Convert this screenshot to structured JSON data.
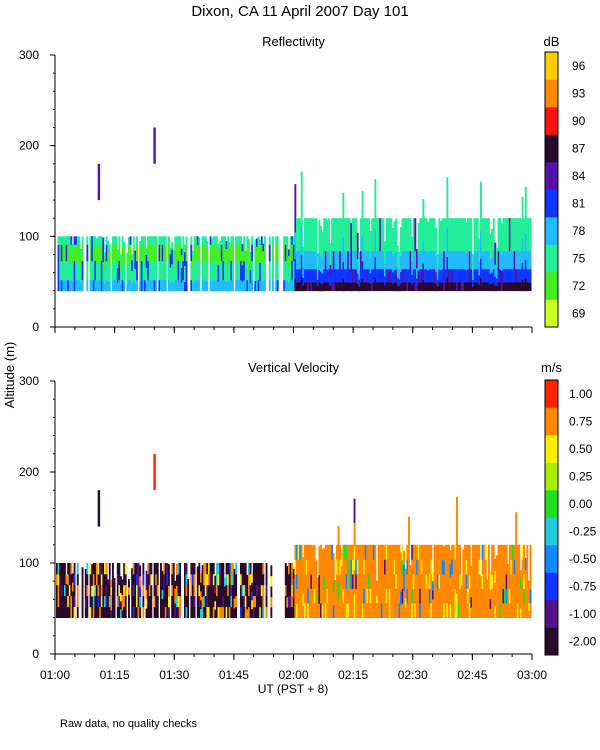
{
  "title": "Dixon, CA 11 April 2007  Day 101",
  "shared_ylabel": "Altitude (m)",
  "xlabel": "UT  (PST + 8)",
  "footnote": "Raw data, no quality checks",
  "chart_data": [
    {
      "type": "heatmap",
      "title": "Reflectivity",
      "units_label": "dB",
      "x_axis": {
        "start": "01:00",
        "end": "03:00",
        "ticks": [
          "01:00",
          "01:15",
          "01:30",
          "01:45",
          "02:00",
          "02:15",
          "02:30",
          "02:45",
          "03:00"
        ]
      },
      "y_axis": {
        "min": 0,
        "max": 300,
        "ticks": [
          0,
          100,
          200,
          300
        ]
      },
      "colorbar": {
        "labels": [
          "69",
          "72",
          "75",
          "78",
          "81",
          "84",
          "87",
          "90",
          "93",
          "96"
        ],
        "colors": [
          "#ccff22",
          "#44ee22",
          "#22ee99",
          "#22bbff",
          "#1133ff",
          "#5511aa",
          "#2a0a2a",
          "#ff1111",
          "#ff8800",
          "#ffcc00"
        ]
      },
      "features": {
        "echo_layer_base_m": 40,
        "echo_top_m_before_0200": 100,
        "echo_top_m_after_0200": 120,
        "max_echo_top_m": 180,
        "isolated_echoes": [
          {
            "time": "01:11",
            "bottom_m": 140,
            "top_m": 180,
            "color": "#5511aa"
          },
          {
            "time": "01:25",
            "bottom_m": 180,
            "top_m": 220,
            "color": "#5511aa"
          }
        ]
      }
    },
    {
      "type": "heatmap",
      "title": "Vertical Velocity",
      "units_label": "m/s",
      "x_axis": {
        "start": "01:00",
        "end": "03:00",
        "ticks": [
          "01:00",
          "01:15",
          "01:30",
          "01:45",
          "02:00",
          "02:15",
          "02:30",
          "02:45",
          "03:00"
        ]
      },
      "y_axis": {
        "min": 0,
        "max": 300,
        "ticks": [
          0,
          100,
          200,
          300
        ]
      },
      "colorbar": {
        "labels": [
          "-2.00",
          "-1.00",
          "-0.75",
          "-0.50",
          "-0.25",
          "0.00",
          "0.25",
          "0.50",
          "0.75",
          "1.00"
        ],
        "colors": [
          "#2a0a2a",
          "#551188",
          "#1133ff",
          "#1188ff",
          "#22ccdd",
          "#22dd22",
          "#aaee00",
          "#ffee00",
          "#ff8800",
          "#ff2200"
        ]
      },
      "features": {
        "echo_layer_base_m": 40,
        "echo_top_m_before_0200": 100,
        "echo_top_m_after_0200": 120,
        "max_echo_top_m": 180,
        "isolated_echoes": [
          {
            "time": "01:11",
            "bottom_m": 140,
            "top_m": 180,
            "color": "#2a0a2a"
          },
          {
            "time": "01:25",
            "bottom_m": 180,
            "top_m": 220,
            "color": "#ff2200"
          }
        ]
      }
    }
  ]
}
